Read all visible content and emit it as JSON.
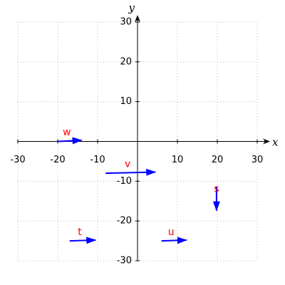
{
  "chart_data": {
    "type": "vector",
    "xlabel": "x",
    "ylabel": "y",
    "xlim": [
      -30,
      30
    ],
    "ylim": [
      -30,
      30
    ],
    "xticks": [
      -30,
      -20,
      -10,
      10,
      20,
      30
    ],
    "yticks": [
      -30,
      -20,
      -10,
      10,
      20,
      30
    ],
    "grid": true,
    "color": "#0000ff",
    "label_color": "#ff0000",
    "vectors": [
      {
        "name": "w",
        "x": [
          -20,
          -14
        ],
        "y": [
          0,
          0.3
        ]
      },
      {
        "name": "v",
        "x": [
          -8,
          4.5
        ],
        "y": [
          -8,
          -7.7
        ]
      },
      {
        "name": "s",
        "x": [
          19.8,
          19.8
        ],
        "y": [
          -11.3,
          -17.4
        ]
      },
      {
        "name": "t",
        "x": [
          -17,
          -10.5
        ],
        "y": [
          -25,
          -24.8
        ]
      },
      {
        "name": "u",
        "x": [
          6,
          12.3
        ],
        "y": [
          -25,
          -24.8
        ]
      }
    ]
  }
}
